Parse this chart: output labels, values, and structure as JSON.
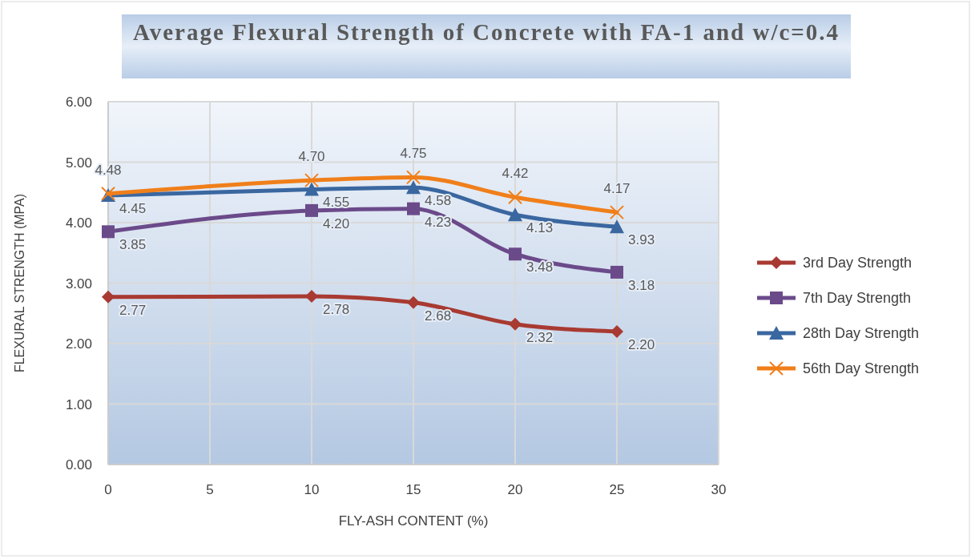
{
  "chart_data": {
    "type": "line",
    "title": "Average Flexural Strength of Concrete with FA-1 and w/c=0.4",
    "xlabel": "FLY-ASH CONTENT (%)",
    "ylabel": "FLEXURAL  STRENGTH (MPA)",
    "x": [
      0,
      10,
      15,
      20,
      25
    ],
    "xlim": [
      0,
      30
    ],
    "xticks": [
      0,
      5,
      10,
      15,
      20,
      25,
      30
    ],
    "ylim": [
      0,
      6
    ],
    "yticks": [
      {
        "value": 0,
        "label": "0.00"
      },
      {
        "value": 1,
        "label": "1.00"
      },
      {
        "value": 2,
        "label": "2.00"
      },
      {
        "value": 3,
        "label": "3.00"
      },
      {
        "value": 4,
        "label": "4.00"
      },
      {
        "value": 5,
        "label": "5.00"
      },
      {
        "value": 6,
        "label": "6.00"
      }
    ],
    "grid": true,
    "legend": "right",
    "series": [
      {
        "name": "3rd Day Strength",
        "color": "#a83a32",
        "marker": "diamond",
        "values": [
          2.77,
          2.78,
          2.68,
          2.32,
          2.2
        ],
        "value_labels": [
          "2.77",
          "2.78",
          "2.68",
          "2.32",
          "2.20"
        ]
      },
      {
        "name": "7th Day Strength",
        "color": "#6b4a8a",
        "marker": "square",
        "values": [
          3.85,
          4.2,
          4.23,
          3.48,
          3.18
        ],
        "value_labels": [
          "3.85",
          "4.20",
          "4.23",
          "3.48",
          "3.18"
        ]
      },
      {
        "name": "28th Day Strength",
        "color": "#3a67a0",
        "marker": "triangle",
        "values": [
          4.45,
          4.55,
          4.58,
          4.13,
          3.93
        ],
        "value_labels": [
          "4.45",
          "4.55",
          "4.58",
          "4.13",
          "3.93"
        ]
      },
      {
        "name": "56th Day Strength",
        "color": "#f07f1a",
        "marker": "cross",
        "values": [
          4.48,
          4.7,
          4.75,
          4.42,
          4.17
        ],
        "value_labels": [
          "4.48",
          "4.70",
          "4.75",
          "4.42",
          "4.17"
        ]
      }
    ]
  }
}
